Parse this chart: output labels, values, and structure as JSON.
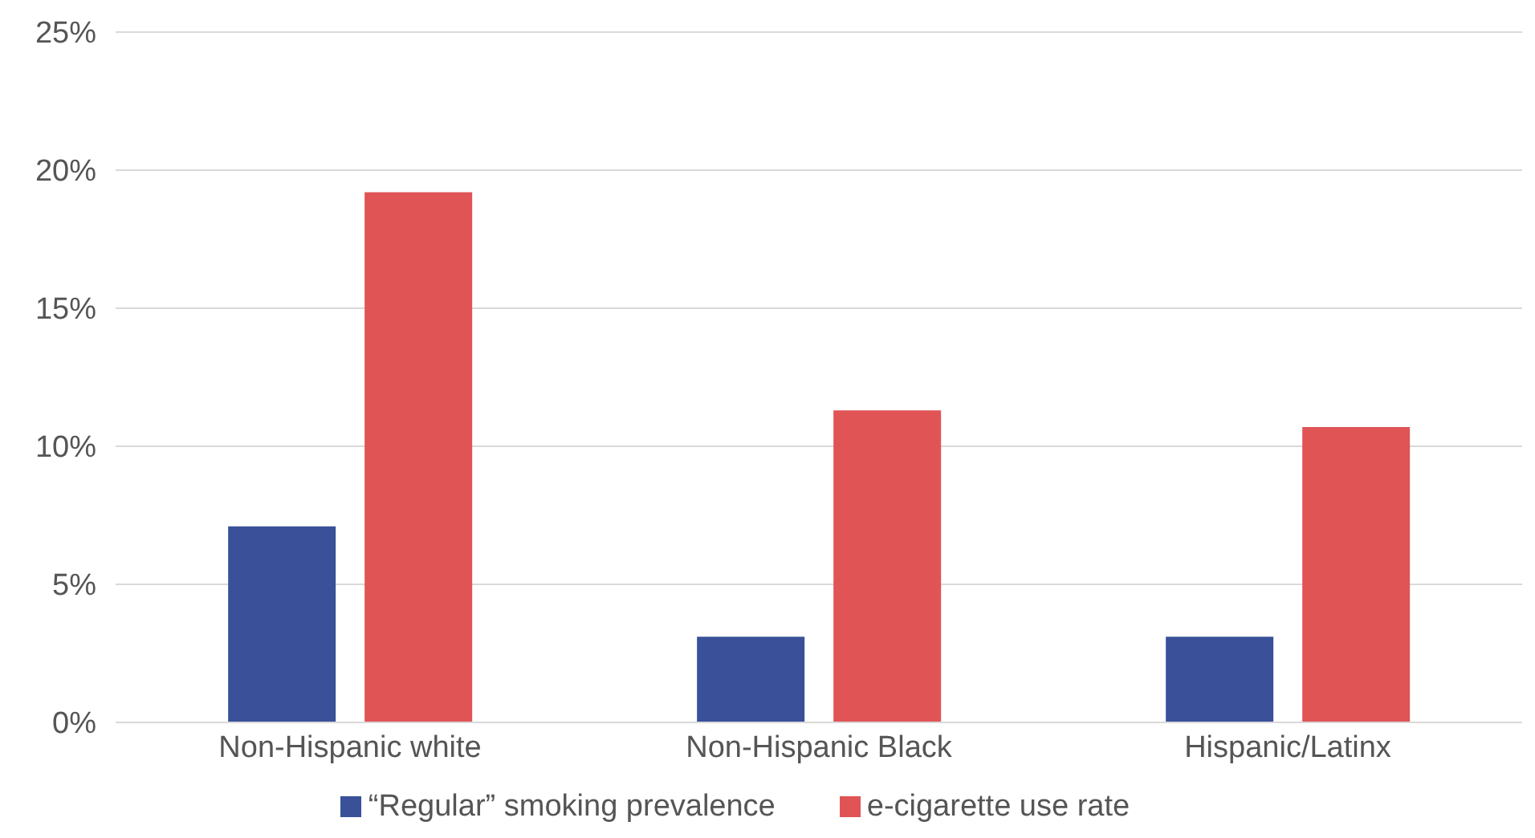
{
  "chart_data": {
    "type": "bar",
    "categories": [
      "Non-Hispanic white",
      "Non-Hispanic Black",
      "Hispanic/Latinx"
    ],
    "series": [
      {
        "name": "“Regular” smoking prevalence",
        "color": "#3a5199",
        "values": [
          7.1,
          3.1,
          3.1
        ]
      },
      {
        "name": "e-cigarette use rate",
        "color": "#e05455",
        "values": [
          19.2,
          11.3,
          10.7
        ]
      }
    ],
    "ylim": [
      0,
      25
    ],
    "yticks": [
      {
        "value": 0,
        "label": "0%"
      },
      {
        "value": 5,
        "label": "5%"
      },
      {
        "value": 10,
        "label": "10%"
      },
      {
        "value": 15,
        "label": "15%"
      },
      {
        "value": 20,
        "label": "20%"
      },
      {
        "value": 25,
        "label": "25%"
      }
    ],
    "grid": "y",
    "legend": "bottom"
  }
}
